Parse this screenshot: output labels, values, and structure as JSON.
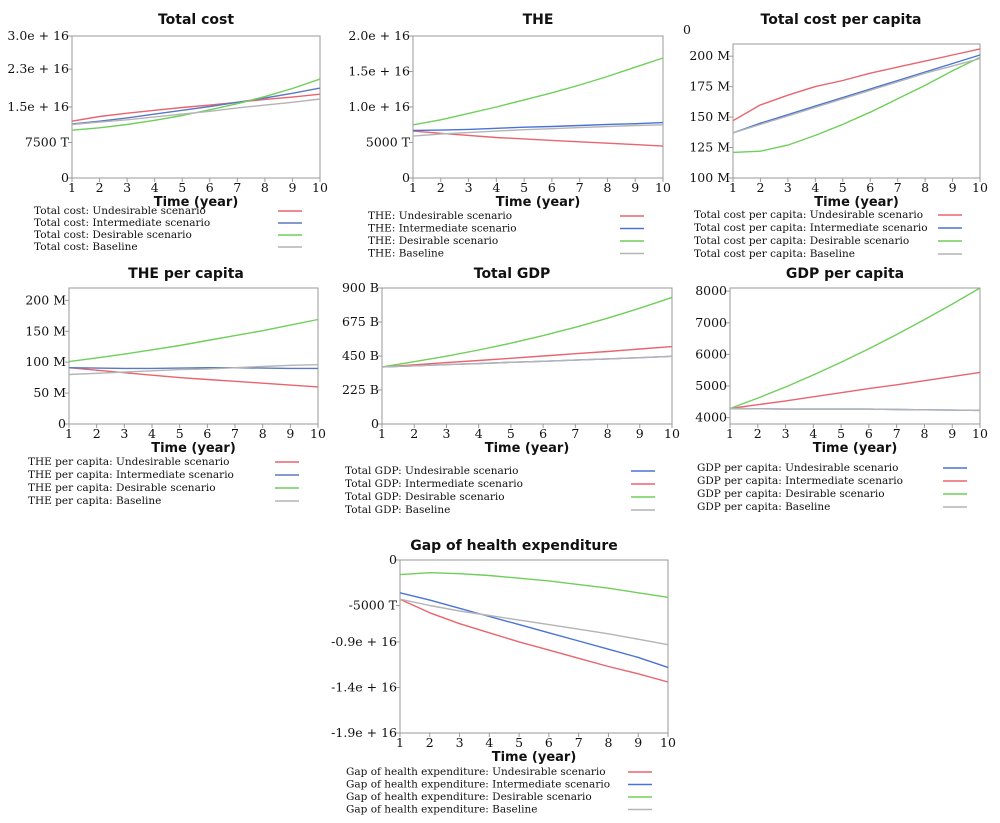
{
  "chart_data": [
    {
      "type": "line",
      "title": "Total cost",
      "xlabel": "Time (year)",
      "ylabel": "",
      "x": [
        1,
        2,
        3,
        4,
        5,
        6,
        7,
        8,
        9,
        10
      ],
      "x_ticks": [
        "1",
        "2",
        "3",
        "4",
        "5",
        "6",
        "7",
        "8",
        "9",
        "10"
      ],
      "ylim": [
        0,
        30000000000000000
      ],
      "y_ticks": [
        {
          "value": 30000000000000000,
          "label": "3.0e + 16"
        },
        {
          "value": 23000000000000000,
          "label": "2.3e + 16"
        },
        {
          "value": 15000000000000000,
          "label": "1.5e + 16"
        },
        {
          "value": 7500000000000000,
          "label": "7500 T"
        },
        {
          "value": 0,
          "label": "0"
        }
      ],
      "series": [
        {
          "name": "Total cost: Undesirable scenario",
          "color": "#e8646e",
          "values": [
            12000000000000000,
            13000000000000000,
            13700000000000000,
            14300000000000000,
            14900000000000000,
            15400000000000000,
            16000000000000000,
            16600000000000000,
            17100000000000000,
            17700000000000000
          ]
        },
        {
          "name": "Total cost: Intermediate scenario",
          "color": "#5a79c2",
          "values": [
            11400000000000000,
            12000000000000000,
            12700000000000000,
            13500000000000000,
            14300000000000000,
            15100000000000000,
            16000000000000000,
            16900000000000000,
            17900000000000000,
            19000000000000000
          ]
        },
        {
          "name": "Total cost: Desirable scenario",
          "color": "#6fcf5a",
          "values": [
            10100000000000000,
            10600000000000000,
            11300000000000000,
            12200000000000000,
            13200000000000000,
            14400000000000000,
            15700000000000000,
            17200000000000000,
            18900000000000000,
            20900000000000000
          ]
        },
        {
          "name": "Total cost: Baseline",
          "color": "#b4b4b4",
          "values": [
            11300000000000000,
            11800000000000000,
            12300000000000000,
            12900000000000000,
            13500000000000000,
            14100000000000000,
            14800000000000000,
            15400000000000000,
            16000000000000000,
            16700000000000000
          ]
        }
      ]
    },
    {
      "type": "line",
      "title": "THE",
      "xlabel": "Time (year)",
      "ylabel": "",
      "x": [
        1,
        2,
        3,
        4,
        5,
        6,
        7,
        8,
        9,
        10
      ],
      "x_ticks": [
        "1",
        "2",
        "3",
        "4",
        "5",
        "6",
        "7",
        "8",
        "9",
        "10"
      ],
      "ylim": [
        0,
        20000000000000000
      ],
      "y_ticks": [
        {
          "value": 20000000000000000,
          "label": "2.0e + 16"
        },
        {
          "value": 15000000000000000,
          "label": "1.5e + 16"
        },
        {
          "value": 10000000000000000,
          "label": "1.0e + 16"
        },
        {
          "value": 5000000000000000,
          "label": "5000 T"
        },
        {
          "value": 0,
          "label": "0"
        }
      ],
      "series": [
        {
          "name": "THE: Undesirable scenario",
          "color": "#e8646e",
          "values": [
            6600000000000000,
            6300000000000000,
            6000000000000000,
            5700000000000000,
            5500000000000000,
            5300000000000000,
            5100000000000000,
            4900000000000000,
            4700000000000000,
            4500000000000000
          ]
        },
        {
          "name": "THE: Intermediate scenario",
          "color": "#4a73d6",
          "values": [
            6700000000000000,
            6750000000000000,
            6850000000000000,
            7000000000000000,
            7150000000000000,
            7250000000000000,
            7400000000000000,
            7550000000000000,
            7650000000000000,
            7800000000000000
          ]
        },
        {
          "name": "THE: Desirable scenario",
          "color": "#6fcf5a",
          "values": [
            7500000000000000,
            8200000000000000,
            9100000000000000,
            10000000000000000,
            11000000000000000,
            12000000000000000,
            13100000000000000,
            14300000000000000,
            15600000000000000,
            16900000000000000
          ]
        },
        {
          "name": "THE: Baseline",
          "color": "#b4b4b4",
          "values": [
            5900000000000000,
            6200000000000000,
            6400000000000000,
            6600000000000000,
            6800000000000000,
            6950000000000000,
            7100000000000000,
            7250000000000000,
            7400000000000000,
            7500000000000000
          ]
        }
      ]
    },
    {
      "type": "line",
      "title": "Total cost per capita",
      "xlabel": "Time (year)",
      "ylabel": "",
      "x": [
        1,
        2,
        3,
        4,
        5,
        6,
        7,
        8,
        9,
        10
      ],
      "x_ticks": [
        "1",
        "2",
        "3",
        "4",
        "5",
        "6",
        "7",
        "8",
        "9",
        "10"
      ],
      "ylim": [
        100000000,
        210000000
      ],
      "y_ticks": [
        {
          "value": 200000000,
          "label": "200 M"
        },
        {
          "value": 175000000,
          "label": "175 M"
        },
        {
          "value": 150000000,
          "label": "150 M"
        },
        {
          "value": 125000000,
          "label": "125 M"
        },
        {
          "value": 100000000,
          "label": "100 M"
        }
      ],
      "y_top_label": "0",
      "series": [
        {
          "name": "Total cost per capita: Undesirable scenario",
          "color": "#e8646e",
          "values": [
            147000000,
            160000000,
            168000000,
            175000000,
            180000000,
            186000000,
            191000000,
            196000000,
            201000000,
            206000000
          ]
        },
        {
          "name": "Total cost per capita: Intermediate scenario",
          "color": "#4a73d6",
          "values": [
            137000000,
            145000000,
            152000000,
            159000000,
            166000000,
            173000000,
            180000000,
            187000000,
            194000000,
            201000000
          ]
        },
        {
          "name": "Total cost per capita: Desirable scenario",
          "color": "#6fcf5a",
          "values": [
            121000000,
            122000000,
            127000000,
            135000000,
            144000000,
            154000000,
            165000000,
            176000000,
            188000000,
            199000000
          ]
        },
        {
          "name": "Total cost per capita: Baseline",
          "color": "#b4b4b4",
          "values": [
            137000000,
            144000000,
            151000000,
            158000000,
            165000000,
            172000000,
            179000000,
            186000000,
            192000000,
            198000000
          ]
        }
      ]
    },
    {
      "type": "line",
      "title": "THE per capita",
      "xlabel": "Time (year)",
      "ylabel": "",
      "x": [
        1,
        2,
        3,
        4,
        5,
        6,
        7,
        8,
        9,
        10
      ],
      "x_ticks": [
        "1",
        "2",
        "3",
        "4",
        "5",
        "6",
        "7",
        "8",
        "9",
        "10"
      ],
      "ylim": [
        0,
        220000000
      ],
      "y_ticks": [
        {
          "value": 200000000,
          "label": "200 M"
        },
        {
          "value": 150000000,
          "label": "150 M"
        },
        {
          "value": 100000000,
          "label": "100 M"
        },
        {
          "value": 50000000,
          "label": "50 M"
        },
        {
          "value": 0,
          "label": "0"
        }
      ],
      "series": [
        {
          "name": "THE per capita: Undesirable scenario",
          "color": "#e8646e",
          "values": [
            91000000,
            87000000,
            83000000,
            79000000,
            75000000,
            72000000,
            69000000,
            66000000,
            63000000,
            60000000
          ]
        },
        {
          "name": "THE per capita: Intermediate scenario",
          "color": "#5a79c2",
          "values": [
            91000000,
            90500000,
            90000000,
            90000000,
            90500000,
            91000000,
            91000000,
            90500000,
            90000000,
            90000000
          ]
        },
        {
          "name": "THE per capita: Desirable scenario",
          "color": "#6fcf5a",
          "values": [
            101000000,
            107000000,
            113000000,
            120000000,
            127000000,
            135000000,
            143000000,
            151000000,
            160000000,
            169000000
          ]
        },
        {
          "name": "THE per capita: Baseline",
          "color": "#b4b4b4",
          "values": [
            80000000,
            82000000,
            84000000,
            86000000,
            88000000,
            89000000,
            91000000,
            93000000,
            95000000,
            96000000
          ]
        }
      ]
    },
    {
      "type": "line",
      "title": "Total GDP",
      "xlabel": "Time (year)",
      "ylabel": "",
      "x": [
        1,
        2,
        3,
        4,
        5,
        6,
        7,
        8,
        9,
        10
      ],
      "x_ticks": [
        "1",
        "2",
        "3",
        "4",
        "5",
        "6",
        "7",
        "8",
        "9",
        "10"
      ],
      "ylim": [
        0,
        900000000000
      ],
      "y_ticks": [
        {
          "value": 900000000000,
          "label": "900 B"
        },
        {
          "value": 675000000000,
          "label": "675 B"
        },
        {
          "value": 450000000000,
          "label": "450 B"
        },
        {
          "value": 225000000000,
          "label": "225 B"
        },
        {
          "value": 0,
          "label": "0"
        }
      ],
      "series": [
        {
          "name": "Total GDP: Undesirable scenario",
          "color": "#4a73d6",
          "values": [
            378000000000,
            385000000000,
            393000000000,
            400000000000,
            408000000000,
            415000000000,
            423000000000,
            431000000000,
            439000000000,
            448000000000
          ]
        },
        {
          "name": "Total GDP: Intermediate scenario",
          "color": "#e8646e",
          "values": [
            378000000000,
            392000000000,
            406000000000,
            420000000000,
            435000000000,
            450000000000,
            465000000000,
            480000000000,
            496000000000,
            512000000000
          ]
        },
        {
          "name": "Total GDP: Desirable scenario",
          "color": "#6fcf5a",
          "values": [
            378000000000,
            412000000000,
            449000000000,
            490000000000,
            535000000000,
            585000000000,
            640000000000,
            700000000000,
            766000000000,
            838000000000
          ]
        },
        {
          "name": "Total GDP: Baseline",
          "color": "#b4b4b4",
          "values": [
            378000000000,
            385000000000,
            393000000000,
            400000000000,
            408000000000,
            415000000000,
            423000000000,
            431000000000,
            439000000000,
            448000000000
          ]
        }
      ]
    },
    {
      "type": "line",
      "title": "GDP per capita",
      "xlabel": "Time (year)",
      "ylabel": "",
      "x": [
        1,
        2,
        3,
        4,
        5,
        6,
        7,
        8,
        9,
        10
      ],
      "x_ticks": [
        "1",
        "2",
        "3",
        "4",
        "5",
        "6",
        "7",
        "8",
        "9",
        "10"
      ],
      "ylim": [
        3800,
        8100
      ],
      "y_ticks": [
        {
          "value": 8000,
          "label": "8000"
        },
        {
          "value": 7000,
          "label": "7000"
        },
        {
          "value": 6000,
          "label": "6000"
        },
        {
          "value": 5000,
          "label": "5000"
        },
        {
          "value": 4000,
          "label": "4000"
        }
      ],
      "series": [
        {
          "name": "GDP per capita: Undesirable scenario",
          "color": "#4a73d6",
          "values": [
            4290,
            4280,
            4270,
            4270,
            4270,
            4270,
            4260,
            4250,
            4240,
            4230
          ]
        },
        {
          "name": "GDP per capita: Intermediate scenario",
          "color": "#e8646e",
          "values": [
            4290,
            4410,
            4530,
            4660,
            4790,
            4920,
            5040,
            5170,
            5300,
            5430
          ]
        },
        {
          "name": "GDP per capita: Desirable scenario",
          "color": "#6fcf5a",
          "values": [
            4290,
            4620,
            4970,
            5350,
            5750,
            6180,
            6630,
            7100,
            7590,
            8100
          ]
        },
        {
          "name": "GDP per capita: Baseline",
          "color": "#b4b4b4",
          "values": [
            4290,
            4280,
            4270,
            4270,
            4270,
            4270,
            4260,
            4250,
            4240,
            4230
          ]
        }
      ]
    },
    {
      "type": "line",
      "title": "Gap of health expenditure",
      "xlabel": "Time (year)",
      "ylabel": "",
      "x": [
        1,
        2,
        3,
        4,
        5,
        6,
        7,
        8,
        9,
        10
      ],
      "x_ticks": [
        "1",
        "2",
        "3",
        "4",
        "5",
        "6",
        "7",
        "8",
        "9",
        "10"
      ],
      "ylim": [
        -19000000000000000,
        0
      ],
      "y_ticks": [
        {
          "value": 0,
          "label": "0"
        },
        {
          "value": -5000000000000000,
          "label": "-5000 T"
        },
        {
          "value": -9000000000000000,
          "label": "-0.9e + 16"
        },
        {
          "value": -14000000000000000,
          "label": "-1.4e + 16"
        },
        {
          "value": -19000000000000000,
          "label": "-1.9e + 16"
        }
      ],
      "series": [
        {
          "name": "Gap of health expenditure: Undesirable scenario",
          "color": "#e8646e",
          "values": [
            -4300000000000000,
            -5800000000000000,
            -7000000000000000,
            -8000000000000000,
            -9000000000000000,
            -9900000000000000,
            -10800000000000000,
            -11700000000000000,
            -12500000000000000,
            -13400000000000000
          ]
        },
        {
          "name": "Gap of health expenditure: Intermediate scenario",
          "color": "#4a73d6",
          "values": [
            -3600000000000000,
            -4400000000000000,
            -5300000000000000,
            -6200000000000000,
            -7100000000000000,
            -8000000000000000,
            -8900000000000000,
            -9800000000000000,
            -10700000000000000,
            -11800000000000000
          ]
        },
        {
          "name": "Gap of health expenditure: Desirable scenario",
          "color": "#6fcf5a",
          "values": [
            -1600000000000000,
            -1400000000000000,
            -1500000000000000,
            -1700000000000000,
            -2000000000000000,
            -2300000000000000,
            -2700000000000000,
            -3100000000000000,
            -3600000000000000,
            -4100000000000000
          ]
        },
        {
          "name": "Gap of health expenditure: Baseline",
          "color": "#b4b4b4",
          "values": [
            -4300000000000000,
            -5000000000000000,
            -5600000000000000,
            -6100000000000000,
            -6600000000000000,
            -7100000000000000,
            -7600000000000000,
            -8100000000000000,
            -8700000000000000,
            -9300000000000000
          ]
        }
      ]
    }
  ]
}
